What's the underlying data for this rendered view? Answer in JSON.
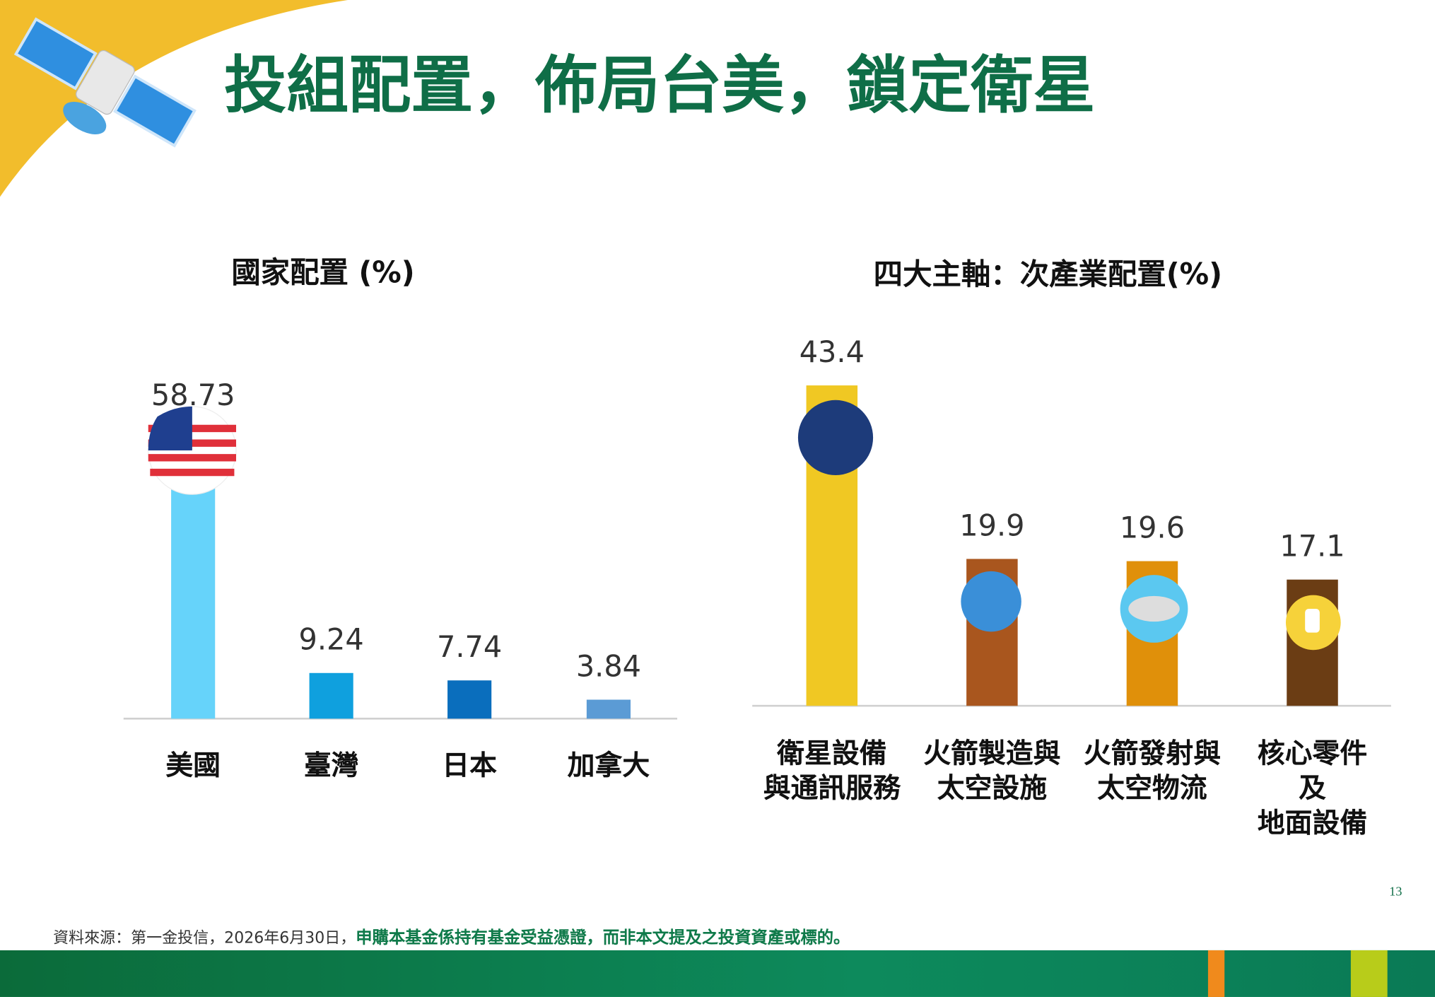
{
  "title": "投組配置，佈局台美，鎖定衛星",
  "page_number": "13",
  "footer": {
    "source": "資料來源：第一金投信，2026年6月30日，",
    "disclaimer": "申購本基金係持有基金受益憑證，而非本文提及之投資資產或標的。"
  },
  "chart_data": [
    {
      "type": "bar",
      "title": "國家配置 (%)",
      "categories": [
        "美國",
        "臺灣",
        "日本",
        "加拿大"
      ],
      "values": [
        58.73,
        9.24,
        7.74,
        3.84
      ],
      "colors": [
        "#66d3fa",
        "#0fa0de",
        "#0a6ebd",
        "#5b9bd5"
      ]
    },
    {
      "type": "bar",
      "title": "四大主軸：次產業配置(%)",
      "categories": [
        "衛星設備\n與通訊服務",
        "火箭製造與\n太空設施",
        "火箭發射與\n太空物流",
        "核心零件及\n地面設備"
      ],
      "values": [
        43.4,
        19.9,
        19.6,
        17.1
      ],
      "colors": [
        "#f0c823",
        "#a9561e",
        "#e0900a",
        "#6b3d14"
      ]
    }
  ]
}
